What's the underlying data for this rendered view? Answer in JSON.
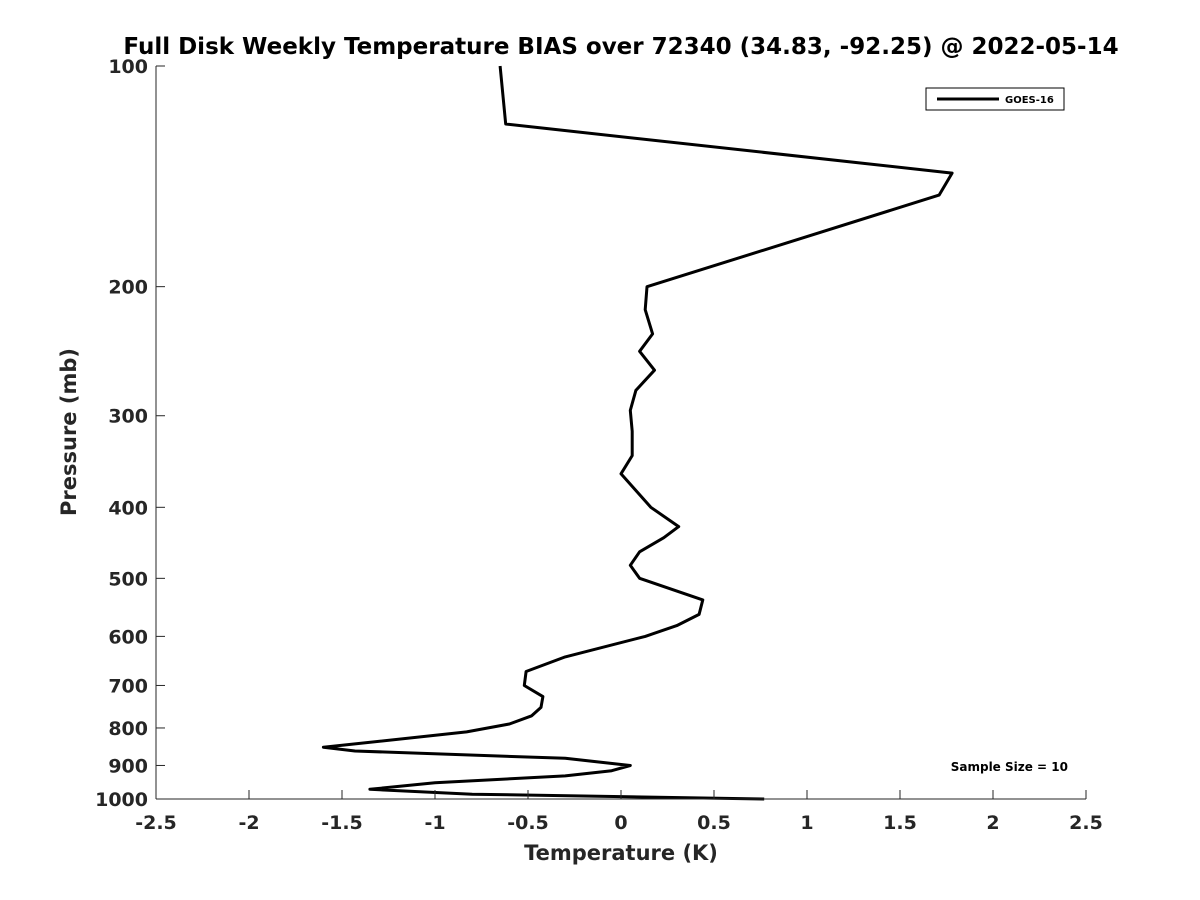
{
  "chart_data": {
    "type": "line",
    "title": "Full Disk Weekly Temperature BIAS over 72340 (34.83, -92.25) @ 2022-05-14",
    "xlabel": "Temperature (K)",
    "ylabel": "Pressure (mb)",
    "xlim": [
      -2.5,
      2.5
    ],
    "ylim": [
      100,
      1000
    ],
    "yscale": "log",
    "y_reversed": true,
    "grid": false,
    "legend_position": "top-right",
    "xticks": [
      -2.5,
      -2,
      -1.5,
      -1,
      -0.5,
      0,
      0.5,
      1,
      1.5,
      2,
      2.5
    ],
    "xtick_labels": [
      "-2.5",
      "-2",
      "-1.5",
      "-1",
      "-0.5",
      "0",
      "0.5",
      "1",
      "1.5",
      "2",
      "2.5"
    ],
    "yticks": [
      100,
      200,
      300,
      400,
      500,
      600,
      700,
      800,
      900,
      1000
    ],
    "ytick_labels": [
      "100",
      "200",
      "300",
      "400",
      "500",
      "600",
      "700",
      "800",
      "900",
      "1000"
    ],
    "annotation": "Sample Size = 10",
    "series": [
      {
        "name": "GOES-16",
        "color": "#000000",
        "points": [
          [
            -0.65,
            100
          ],
          [
            -0.62,
            120
          ],
          [
            1.78,
            140
          ],
          [
            1.71,
            150
          ],
          [
            0.14,
            200
          ],
          [
            0.13,
            215
          ],
          [
            0.17,
            232
          ],
          [
            0.1,
            245
          ],
          [
            0.18,
            260
          ],
          [
            0.08,
            277
          ],
          [
            0.05,
            295
          ],
          [
            0.06,
            315
          ],
          [
            0.06,
            340
          ],
          [
            0.0,
            360
          ],
          [
            0.16,
            400
          ],
          [
            0.31,
            425
          ],
          [
            0.23,
            440
          ],
          [
            0.1,
            460
          ],
          [
            0.05,
            480
          ],
          [
            0.1,
            500
          ],
          [
            0.44,
            535
          ],
          [
            0.42,
            560
          ],
          [
            0.3,
            580
          ],
          [
            0.13,
            600
          ],
          [
            -0.3,
            640
          ],
          [
            -0.51,
            670
          ],
          [
            -0.52,
            700
          ],
          [
            -0.42,
            725
          ],
          [
            -0.43,
            750
          ],
          [
            -0.48,
            770
          ],
          [
            -0.6,
            790
          ],
          [
            -0.83,
            810
          ],
          [
            -1.6,
            850
          ],
          [
            -1.43,
            860
          ],
          [
            -0.3,
            880
          ],
          [
            0.05,
            900
          ],
          [
            -0.05,
            915
          ],
          [
            -0.3,
            930
          ],
          [
            -1.0,
            950
          ],
          [
            -1.35,
            970
          ],
          [
            -0.8,
            985
          ],
          [
            0.77,
            1000
          ]
        ]
      }
    ]
  }
}
